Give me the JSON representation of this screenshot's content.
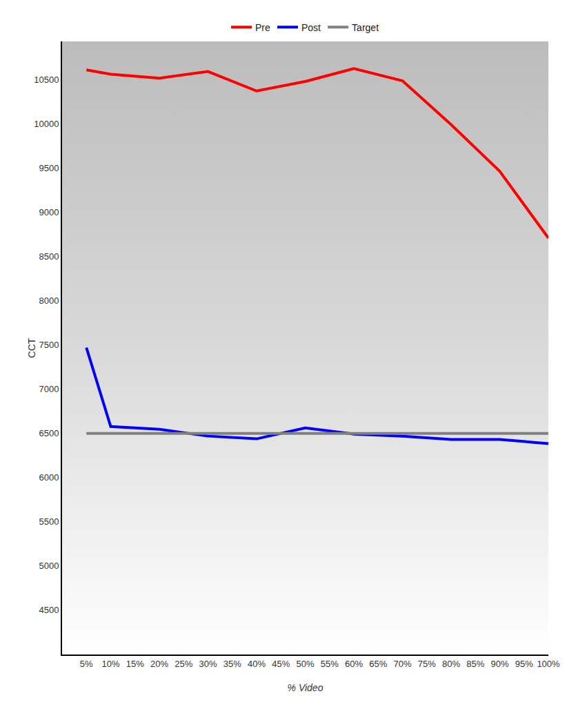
{
  "chart_data": {
    "type": "line",
    "xlabel": "% Video",
    "ylabel": "CCT",
    "x": [
      5,
      10,
      20,
      30,
      40,
      50,
      60,
      70,
      80,
      90,
      100
    ],
    "series": [
      {
        "name": "Pre",
        "color": "#ff0000",
        "values": [
          10608,
          10560,
          10515,
          10590,
          10370,
          10477,
          10623,
          10485,
          9990,
          9462,
          8708
        ]
      },
      {
        "name": "Post",
        "color": "#0000ff",
        "values": [
          7469,
          6577,
          6546,
          6469,
          6438,
          6562,
          6492,
          6469,
          6431,
          6431,
          6385
        ]
      },
      {
        "name": "Target",
        "color": "#808080",
        "values": [
          6500,
          6500,
          6500,
          6500,
          6500,
          6500,
          6500,
          6500,
          6500,
          6500,
          6500
        ]
      }
    ],
    "xlim": [
      0,
      100
    ],
    "xticks": [
      {
        "value": 5,
        "label": "5%"
      },
      {
        "value": 10,
        "label": "10%"
      },
      {
        "value": 15,
        "label": "15%"
      },
      {
        "value": 20,
        "label": "20%"
      },
      {
        "value": 25,
        "label": "25%"
      },
      {
        "value": 30,
        "label": "30%"
      },
      {
        "value": 35,
        "label": "35%"
      },
      {
        "value": 40,
        "label": "40%"
      },
      {
        "value": 45,
        "label": "45%"
      },
      {
        "value": 50,
        "label": "50%"
      },
      {
        "value": 55,
        "label": "55%"
      },
      {
        "value": 60,
        "label": "60%"
      },
      {
        "value": 65,
        "label": "65%"
      },
      {
        "value": 70,
        "label": "70%"
      },
      {
        "value": 75,
        "label": "75%"
      },
      {
        "value": 80,
        "label": "80%"
      },
      {
        "value": 85,
        "label": "85%"
      },
      {
        "value": 90,
        "label": "90%"
      },
      {
        "value": 95,
        "label": "95%"
      },
      {
        "value": 100,
        "label": "100%"
      }
    ],
    "ylim": [
      4000,
      10930
    ],
    "yticks": [
      4500,
      5000,
      5500,
      6000,
      6500,
      7000,
      7500,
      8000,
      8500,
      9000,
      9500,
      10000,
      10500
    ],
    "grid": false,
    "legend": "top"
  }
}
